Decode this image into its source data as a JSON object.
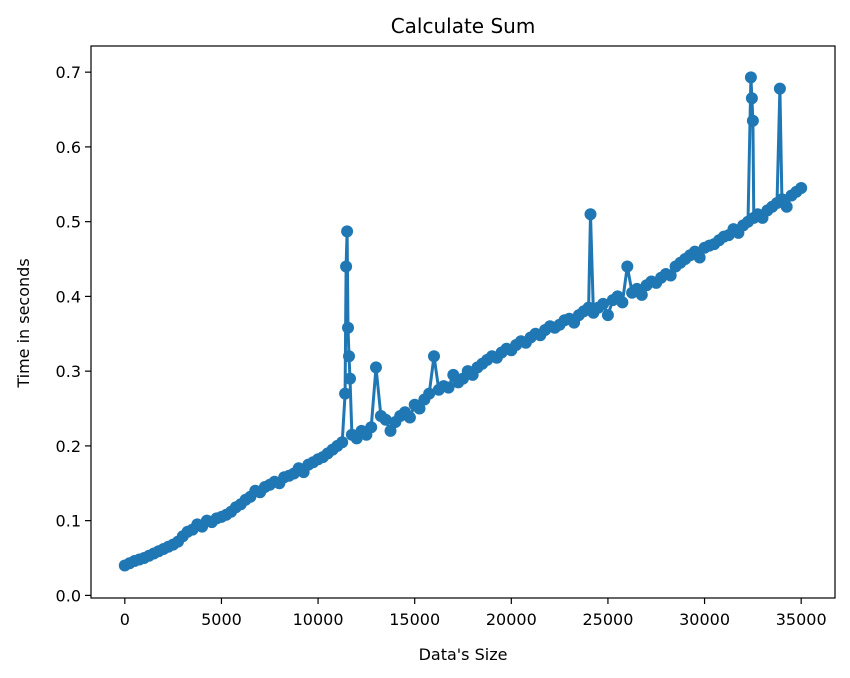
{
  "chart_data": {
    "type": "line",
    "title": "Calculate Sum",
    "xlabel": "Data's Size",
    "ylabel": "Time in seconds",
    "xlim": [
      -1750,
      36750
    ],
    "ylim": [
      -0.0035,
      0.735
    ],
    "xticks": [
      "0",
      "5000",
      "10000",
      "15000",
      "20000",
      "25000",
      "30000",
      "35000"
    ],
    "xtick_values": [
      0,
      5000,
      10000,
      15000,
      20000,
      25000,
      30000,
      35000
    ],
    "yticks": [
      "0.0",
      "0.1",
      "0.2",
      "0.3",
      "0.4",
      "0.5",
      "0.6",
      "0.7"
    ],
    "ytick_values": [
      0,
      0.1,
      0.2,
      0.3,
      0.4,
      0.5,
      0.6,
      0.7
    ],
    "grid": false,
    "marker": "circle",
    "color": "#1f77b4",
    "series": [
      {
        "x": [
          0,
          250,
          500,
          750,
          1000,
          1250,
          1500,
          1750,
          2000,
          2250,
          2500,
          2750,
          3000,
          3250,
          3500,
          3750,
          4000,
          4250,
          4500,
          4750,
          5000,
          5250,
          5500,
          5750,
          6000,
          6250,
          6500,
          6750,
          7000,
          7250,
          7500,
          7750,
          8000,
          8250,
          8500,
          8750,
          9000,
          9250,
          9500,
          9750,
          10000,
          10250,
          10500,
          10750,
          11000,
          11250,
          11400,
          11450,
          11500,
          11550,
          11600,
          11650,
          11750,
          12000,
          12250,
          12500,
          12750,
          13000,
          13250,
          13500,
          13750,
          14000,
          14250,
          14500,
          14750,
          15000,
          15250,
          15500,
          15750,
          16000,
          16250,
          16500,
          16750,
          17000,
          17250,
          17500,
          17750,
          18000,
          18250,
          18500,
          18750,
          19000,
          19250,
          19500,
          19750,
          20000,
          20250,
          20500,
          20750,
          21000,
          21250,
          21500,
          21750,
          22000,
          22250,
          22500,
          22750,
          23000,
          23250,
          23500,
          23750,
          24000,
          24100,
          24250,
          24500,
          24750,
          25000,
          25250,
          25500,
          25750,
          26000,
          26250,
          26500,
          26750,
          27000,
          27250,
          27500,
          27750,
          28000,
          28250,
          28500,
          28750,
          29000,
          29250,
          29500,
          29750,
          30000,
          30250,
          30500,
          30750,
          31000,
          31250,
          31500,
          31750,
          32000,
          32250,
          32400,
          32450,
          32500,
          32550,
          32750,
          33000,
          33250,
          33500,
          33750,
          33900,
          34000,
          34250,
          34500,
          34750,
          35000
        ],
        "y": [
          0.04,
          0.043,
          0.046,
          0.048,
          0.05,
          0.053,
          0.056,
          0.059,
          0.062,
          0.065,
          0.068,
          0.072,
          0.079,
          0.085,
          0.088,
          0.095,
          0.092,
          0.1,
          0.098,
          0.103,
          0.105,
          0.108,
          0.112,
          0.118,
          0.122,
          0.128,
          0.132,
          0.14,
          0.138,
          0.145,
          0.148,
          0.152,
          0.15,
          0.158,
          0.16,
          0.163,
          0.17,
          0.165,
          0.175,
          0.178,
          0.182,
          0.185,
          0.19,
          0.195,
          0.2,
          0.205,
          0.27,
          0.44,
          0.487,
          0.358,
          0.32,
          0.29,
          0.215,
          0.21,
          0.22,
          0.215,
          0.225,
          0.305,
          0.24,
          0.235,
          0.22,
          0.232,
          0.24,
          0.245,
          0.238,
          0.255,
          0.25,
          0.262,
          0.27,
          0.32,
          0.275,
          0.28,
          0.278,
          0.295,
          0.285,
          0.29,
          0.3,
          0.295,
          0.305,
          0.31,
          0.315,
          0.32,
          0.318,
          0.325,
          0.33,
          0.328,
          0.335,
          0.34,
          0.338,
          0.345,
          0.35,
          0.348,
          0.355,
          0.36,
          0.358,
          0.362,
          0.368,
          0.37,
          0.365,
          0.375,
          0.38,
          0.385,
          0.51,
          0.378,
          0.385,
          0.39,
          0.375,
          0.395,
          0.4,
          0.392,
          0.44,
          0.405,
          0.41,
          0.402,
          0.415,
          0.42,
          0.418,
          0.425,
          0.43,
          0.428,
          0.44,
          0.445,
          0.45,
          0.455,
          0.46,
          0.452,
          0.465,
          0.468,
          0.47,
          0.475,
          0.48,
          0.482,
          0.49,
          0.485,
          0.495,
          0.5,
          0.693,
          0.665,
          0.635,
          0.505,
          0.51,
          0.505,
          0.515,
          0.52,
          0.525,
          0.678,
          0.53,
          0.52,
          0.535,
          0.54,
          0.545
        ]
      }
    ]
  }
}
